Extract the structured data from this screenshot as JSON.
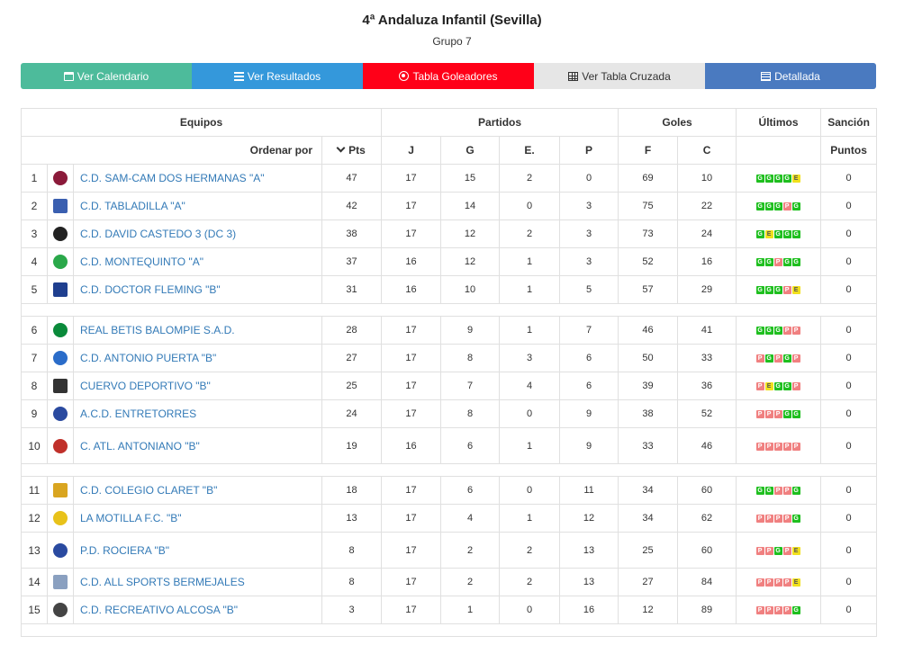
{
  "header": {
    "title": "4ª Andaluza Infantil (Sevilla)",
    "group": "Grupo 7"
  },
  "nav": [
    {
      "label": "Ver Calendario",
      "icon": "calendar-icon",
      "color": "#4dbb9b"
    },
    {
      "label": "Ver Resultados",
      "icon": "list-icon",
      "color": "#3498db"
    },
    {
      "label": "Tabla Goleadores",
      "icon": "soccer-ball-icon",
      "color": "#ff0018"
    },
    {
      "label": "Ver Tabla Cruzada",
      "icon": "calculator-icon",
      "color": "#e6e6e6"
    },
    {
      "label": "Detallada",
      "icon": "list-detail-icon",
      "color": "#4a7ac0"
    }
  ],
  "table": {
    "headers": {
      "equipos": "Equipos",
      "partidos": "Partidos",
      "goles": "Goles",
      "ultimos": "Últimos",
      "sancion": "Sanción"
    },
    "subheaders": {
      "ordenar": "Ordenar por",
      "pts": "Pts",
      "j": "J",
      "g": "G",
      "e": "E.",
      "p": "P",
      "f": "F",
      "c": "C",
      "puntos": "Puntos"
    },
    "rows": [
      {
        "pos": "1",
        "team": "C.D. SAM-CAM DOS HERMANAS \"A\"",
        "pts": "47",
        "j": "17",
        "g": "15",
        "e": "2",
        "p": "0",
        "f": "69",
        "c": "10",
        "last": [
          "G",
          "G",
          "G",
          "G",
          "E"
        ],
        "sancion": "0",
        "logo_color": "#8b1a3a"
      },
      {
        "pos": "2",
        "team": "C.D. TABLADILLA \"A\"",
        "pts": "42",
        "j": "17",
        "g": "14",
        "e": "0",
        "p": "3",
        "f": "75",
        "c": "22",
        "last": [
          "G",
          "G",
          "G",
          "P",
          "G"
        ],
        "sancion": "0",
        "logo_color": "#3a5fb0"
      },
      {
        "pos": "3",
        "team": "C.D. DAVID CASTEDO 3 (DC 3)",
        "pts": "38",
        "j": "17",
        "g": "12",
        "e": "2",
        "p": "3",
        "f": "73",
        "c": "24",
        "last": [
          "G",
          "E",
          "G",
          "G",
          "G"
        ],
        "sancion": "0",
        "logo_color": "#222222"
      },
      {
        "pos": "4",
        "team": "C.D. MONTEQUINTO \"A\"",
        "pts": "37",
        "j": "16",
        "g": "12",
        "e": "1",
        "p": "3",
        "f": "52",
        "c": "16",
        "last": [
          "G",
          "G",
          "P",
          "G",
          "G"
        ],
        "sancion": "0",
        "logo_color": "#2aa84a"
      },
      {
        "pos": "5",
        "team": "C.D. DOCTOR FLEMING \"B\"",
        "pts": "31",
        "j": "16",
        "g": "10",
        "e": "1",
        "p": "5",
        "f": "57",
        "c": "29",
        "last": [
          "G",
          "G",
          "G",
          "P",
          "E"
        ],
        "sancion": "0",
        "logo_color": "#1f3f8f"
      },
      {
        "pos": "6",
        "team": "REAL BETIS BALOMPIE S.A.D.",
        "pts": "28",
        "j": "17",
        "g": "9",
        "e": "1",
        "p": "7",
        "f": "46",
        "c": "41",
        "last": [
          "G",
          "G",
          "G",
          "P",
          "P"
        ],
        "sancion": "0",
        "logo_color": "#0a8a3a"
      },
      {
        "pos": "7",
        "team": "C.D. ANTONIO PUERTA \"B\"",
        "pts": "27",
        "j": "17",
        "g": "8",
        "e": "3",
        "p": "6",
        "f": "50",
        "c": "33",
        "last": [
          "P",
          "G",
          "P",
          "G",
          "P"
        ],
        "sancion": "0",
        "logo_color": "#2a6cc9"
      },
      {
        "pos": "8",
        "team": "CUERVO DEPORTIVO \"B\"",
        "pts": "25",
        "j": "17",
        "g": "7",
        "e": "4",
        "p": "6",
        "f": "39",
        "c": "36",
        "last": [
          "P",
          "E",
          "G",
          "G",
          "P"
        ],
        "sancion": "0",
        "logo_color": "#333333"
      },
      {
        "pos": "9",
        "team": "A.C.D. ENTRETORRES",
        "pts": "24",
        "j": "17",
        "g": "8",
        "e": "0",
        "p": "9",
        "f": "38",
        "c": "52",
        "last": [
          "P",
          "P",
          "P",
          "G",
          "G"
        ],
        "sancion": "0",
        "logo_color": "#2a4aa0"
      },
      {
        "pos": "10",
        "team": "C. ATL. ANTONIANO \"B\"",
        "pts": "19",
        "j": "16",
        "g": "6",
        "e": "1",
        "p": "9",
        "f": "33",
        "c": "46",
        "last": [
          "P",
          "P",
          "P",
          "P",
          "P"
        ],
        "sancion": "0",
        "logo_color": "#c0302a"
      },
      {
        "pos": "11",
        "team": "C.D. COLEGIO CLARET \"B\"",
        "pts": "18",
        "j": "17",
        "g": "6",
        "e": "0",
        "p": "11",
        "f": "34",
        "c": "60",
        "last": [
          "G",
          "G",
          "P",
          "P",
          "G"
        ],
        "sancion": "0",
        "logo_color": "#d9a520"
      },
      {
        "pos": "12",
        "team": "LA MOTILLA F.C. \"B\"",
        "pts": "13",
        "j": "17",
        "g": "4",
        "e": "1",
        "p": "12",
        "f": "34",
        "c": "62",
        "last": [
          "P",
          "P",
          "P",
          "P",
          "G"
        ],
        "sancion": "0",
        "logo_color": "#e8c21a"
      },
      {
        "pos": "13",
        "team": "P.D. ROCIERA \"B\"",
        "pts": "8",
        "j": "17",
        "g": "2",
        "e": "2",
        "p": "13",
        "f": "25",
        "c": "60",
        "last": [
          "P",
          "P",
          "G",
          "P",
          "E"
        ],
        "sancion": "0",
        "logo_color": "#2a4aa0"
      },
      {
        "pos": "14",
        "team": "C.D. ALL SPORTS BERMEJALES",
        "pts": "8",
        "j": "17",
        "g": "2",
        "e": "2",
        "p": "13",
        "f": "27",
        "c": "84",
        "last": [
          "P",
          "P",
          "P",
          "P",
          "E"
        ],
        "sancion": "0",
        "logo_color": "#8aa0c0"
      },
      {
        "pos": "15",
        "team": "C.D. RECREATIVO ALCOSA \"B\"",
        "pts": "3",
        "j": "17",
        "g": "1",
        "e": "0",
        "p": "16",
        "f": "12",
        "c": "89",
        "last": [
          "P",
          "P",
          "P",
          "P",
          "G"
        ],
        "sancion": "0",
        "logo_color": "#444444"
      }
    ]
  }
}
